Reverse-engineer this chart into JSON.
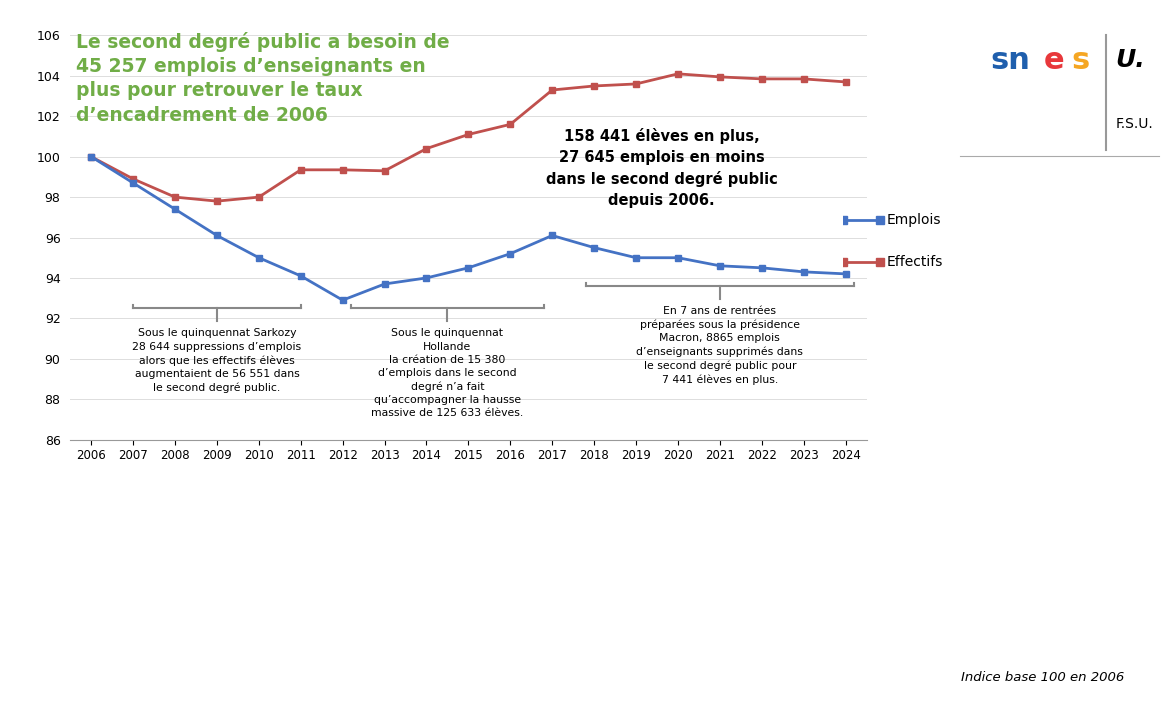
{
  "years": [
    2006,
    2007,
    2008,
    2009,
    2010,
    2011,
    2012,
    2013,
    2014,
    2015,
    2016,
    2017,
    2018,
    2019,
    2020,
    2021,
    2022,
    2023,
    2024
  ],
  "emplois": [
    100.0,
    98.7,
    97.4,
    96.1,
    95.0,
    94.1,
    92.9,
    93.7,
    94.0,
    94.5,
    95.2,
    96.1,
    95.5,
    95.0,
    95.0,
    94.6,
    94.5,
    94.3,
    94.2
  ],
  "effectifs": [
    100.0,
    98.9,
    98.0,
    97.8,
    98.0,
    99.35,
    99.35,
    99.3,
    100.4,
    101.1,
    101.6,
    103.3,
    103.5,
    103.6,
    104.1,
    103.95,
    103.85,
    103.85,
    103.7
  ],
  "emplois_color": "#4472C4",
  "effectifs_color": "#C0504D",
  "title_line1": "Le second degré public a besoin de",
  "title_line2": "45 257 emplois d’enseignants en",
  "title_line3": "plus pour retrouver le taux",
  "title_line4": "d’encadrement de 2006",
  "title_color": "#70AD47",
  "ylim_min": 86,
  "ylim_max": 106,
  "annotation_center_text": "158 441 élèves en plus,\n27 645 emplois en moins\ndans le second degré public\ndepuis 2006.",
  "annotation_sarkozy": "Sous le quinquennat Sarkozy\n28 644 suppressions d’emplois\nalors que les effectifs élèves\naugmentaient de 56 551 dans\nle second degré public.",
  "annotation_hollande": "Sous le quinquennat\nHollande\nla création de 15 380\nd’emplois dans le second\ndegré n’a fait\nqu’accompagner la hausse\nmassive de 125 633 élèves.",
  "annotation_macron": "En 7 ans de rentrées\npréparées sous la présidence\nMacron, 8865 emplois\nd’enseignants supprimés dans\nle second degré public pour\n7 441 élèves en plus.",
  "indice_base_text": "Indice base 100 en 2006",
  "background_color": "#FFFFFF"
}
